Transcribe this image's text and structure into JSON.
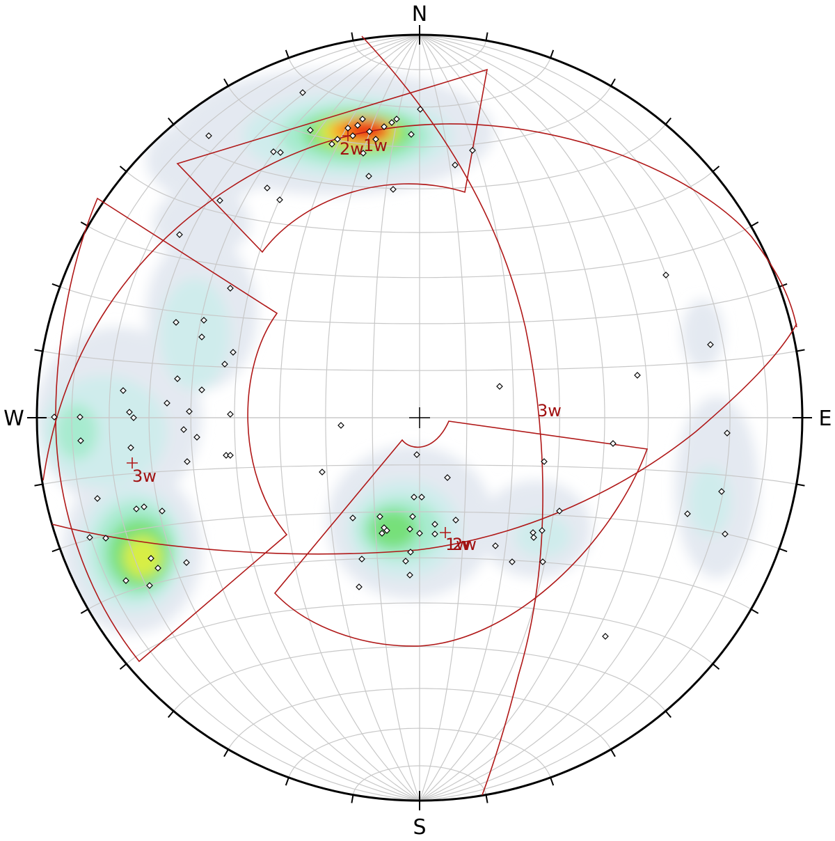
{
  "compass": {
    "north": "N",
    "south": "S",
    "east": "E",
    "west": "W"
  },
  "set_labels": [
    "2w",
    "1w",
    "3w",
    "3w",
    "1w",
    "2w"
  ]
}
